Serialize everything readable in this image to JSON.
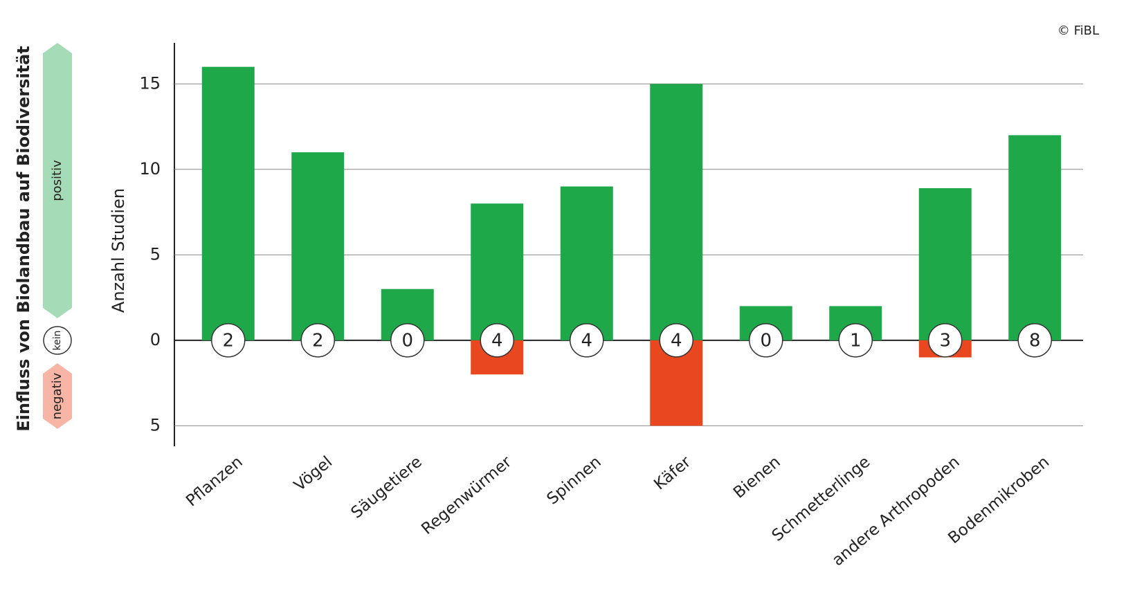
{
  "chart_data": {
    "type": "bar",
    "title": "Einfluss von Biolandbau auf Biodiversität",
    "ylabel": "Anzahl Studien",
    "source": "© FiBL",
    "categories": [
      "Pflanzen",
      "Vögel",
      "Säugetiere",
      "Regenwürmer",
      "Spinnen",
      "Käfer",
      "Bienen",
      "Schmetterlinge",
      "andere Arthropoden",
      "Bodenmikroben"
    ],
    "series": [
      {
        "name": "positiv",
        "color": "#1fa84a",
        "values": [
          16,
          11,
          3,
          8,
          9,
          15,
          2,
          2,
          8.9,
          12
        ]
      },
      {
        "name": "kein",
        "color": "#ffffff",
        "values": [
          2,
          2,
          0,
          4,
          4,
          4,
          0,
          1,
          3,
          8
        ]
      },
      {
        "name": "negativ",
        "color": "#e8471f",
        "values": [
          0,
          0,
          0,
          -2,
          0,
          -5,
          0,
          0,
          -1,
          0
        ]
      }
    ],
    "ylim": [
      -6.2,
      17.4
    ],
    "yticks": [
      15,
      10,
      5,
      0,
      {
        "value": -5,
        "label": "5"
      }
    ],
    "grid": true
  }
}
